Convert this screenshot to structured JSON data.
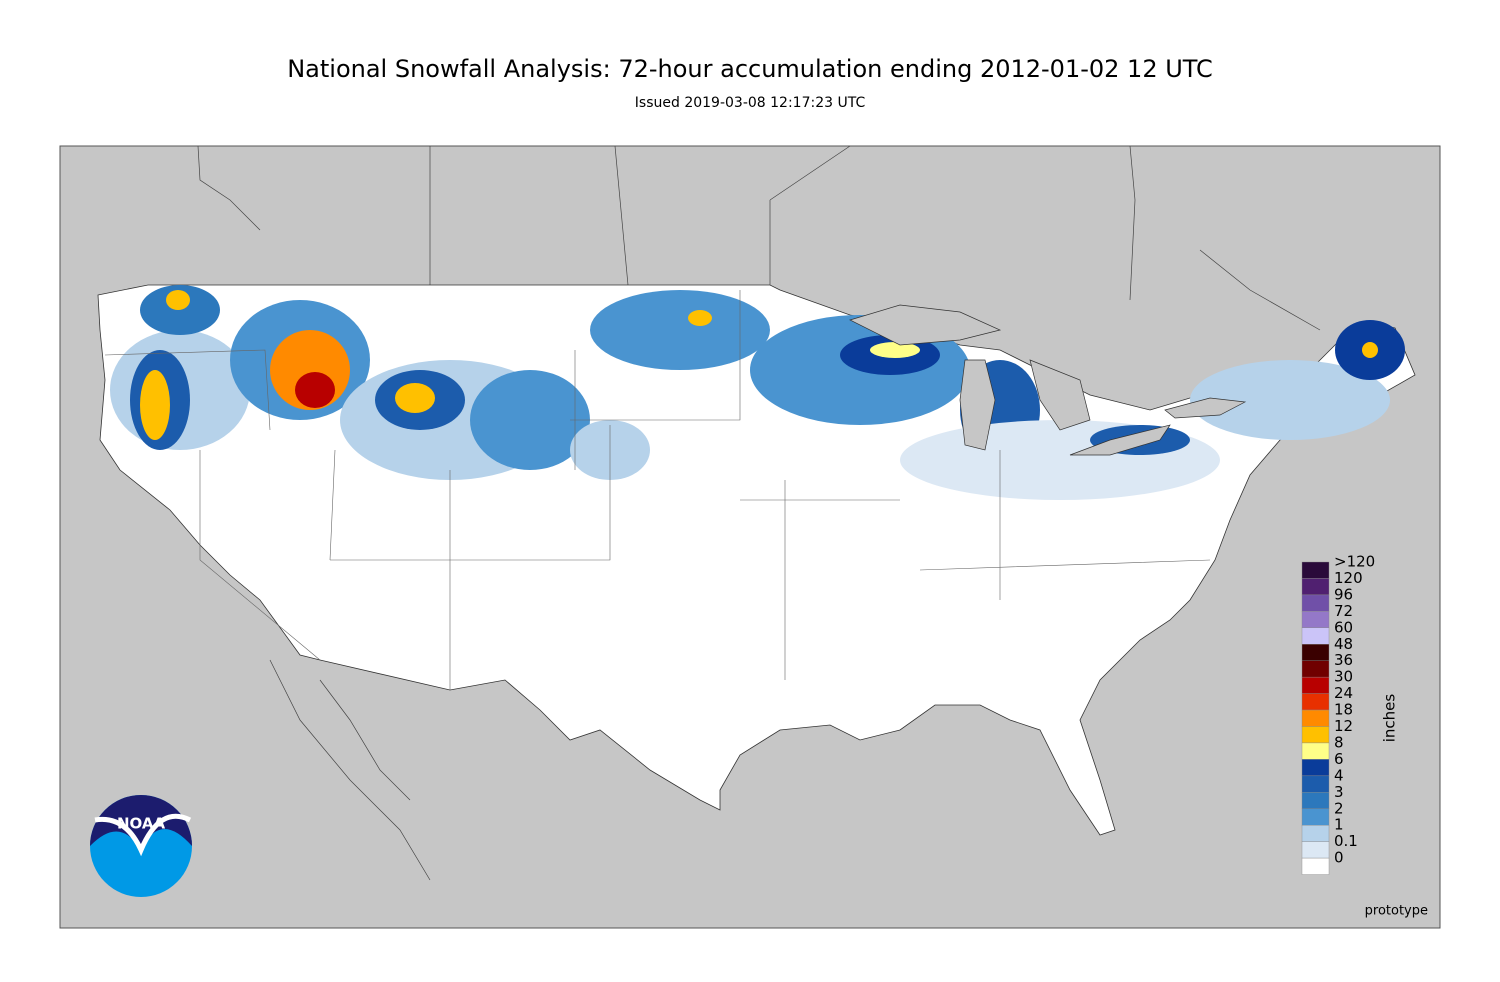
{
  "header": {
    "title": "National Snowfall Analysis: 72-hour accumulation ending 2012-01-02 12 UTC",
    "subtitle": "Issued 2019-03-08 12:17:23 UTC"
  },
  "legend": {
    "unit": "inches",
    "labels": [
      ">120",
      "120",
      "96",
      "72",
      "60",
      "48",
      "36",
      "30",
      "24",
      "18",
      "12",
      "8",
      "6",
      "4",
      "3",
      "2",
      "1",
      "0.1",
      "0"
    ],
    "colors": [
      "#2a0a3a",
      "#502070",
      "#7050a8",
      "#9478c8",
      "#cbc4f8",
      "#3a0000",
      "#700000",
      "#b80000",
      "#e83000",
      "#ff8a00",
      "#ffc000",
      "#ffff88",
      "#0a3c9a",
      "#1c5cac",
      "#2c78bc",
      "#4a94d0",
      "#b6d2ea",
      "#dce8f4",
      "#ffffff"
    ]
  },
  "footer": {
    "note": "prototype"
  },
  "logo": {
    "text": "NOAA"
  }
}
